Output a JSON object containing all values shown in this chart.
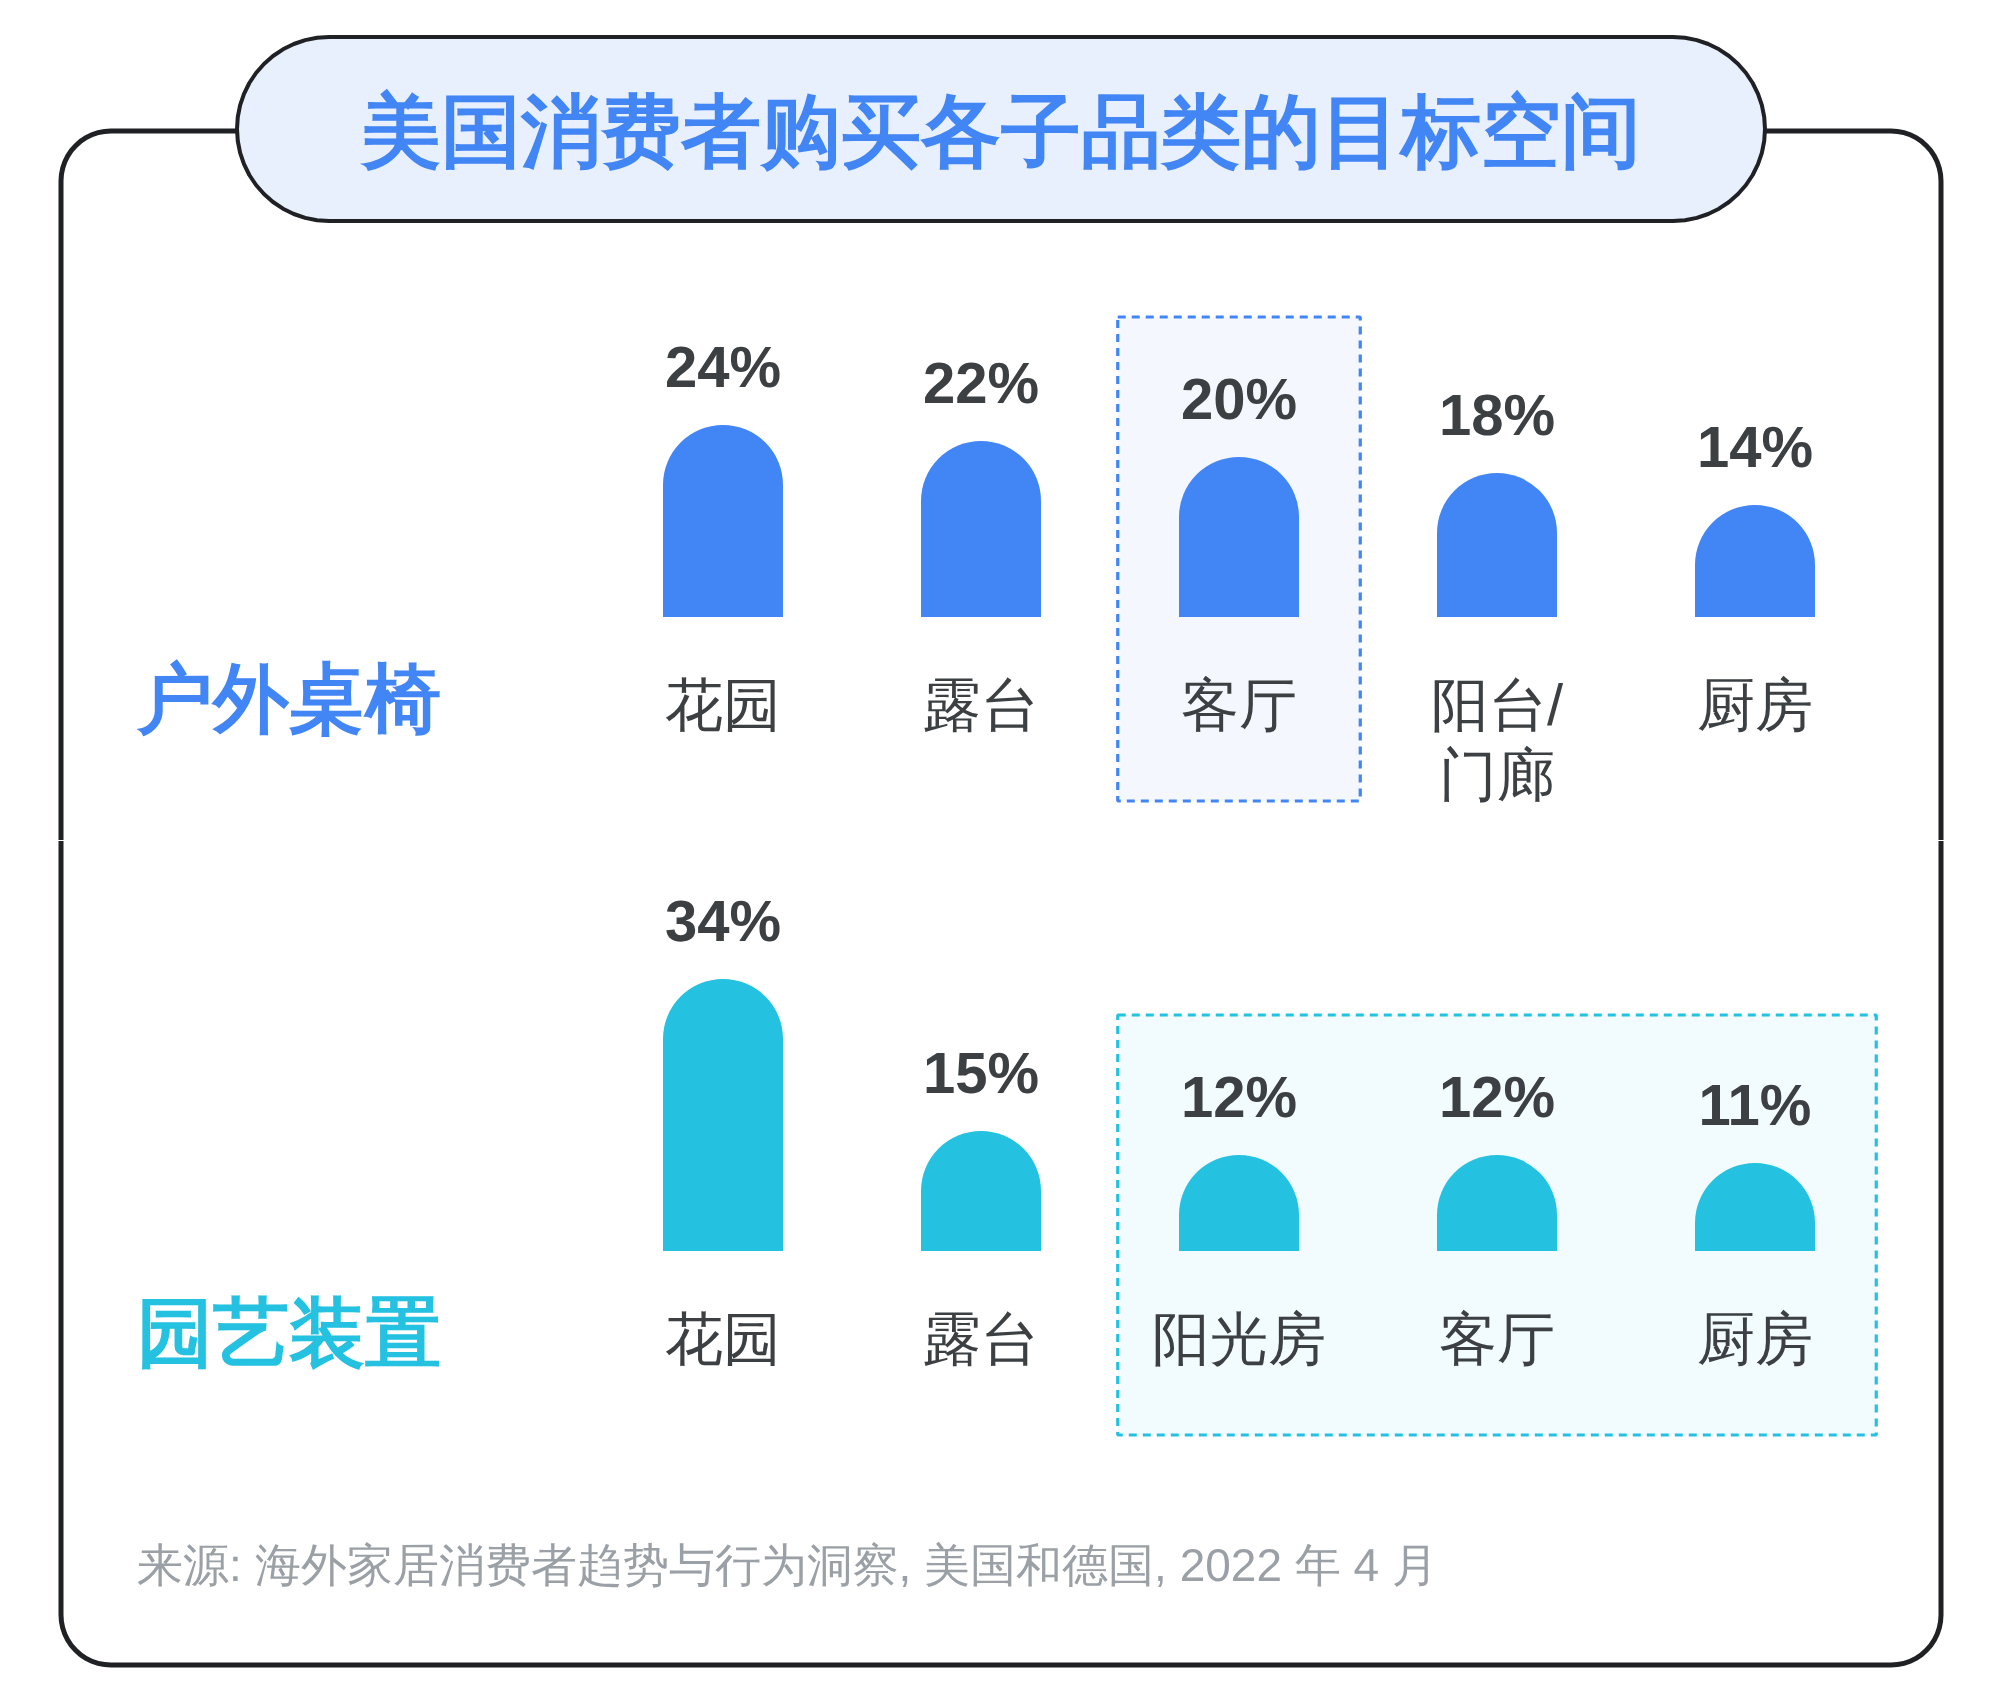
{
  "chart_data": [
    {
      "type": "bar",
      "title": "美国消费者购买各子品类的目标空间",
      "ylabel": "户外桌椅",
      "categories": [
        "花园",
        "露台",
        "客厅",
        "阳台/门廊",
        "厨房"
      ],
      "values": [
        24,
        22,
        20,
        18,
        14
      ],
      "value_labels": [
        "24%",
        "22%",
        "20%",
        "18%",
        "14%"
      ],
      "color": "#4285f4",
      "bands": [
        {
          "axis": "x",
          "from": "客厅",
          "to": "客厅",
          "color": "#4285f4"
        }
      ]
    },
    {
      "type": "bar",
      "ylabel": "园艺装置",
      "categories": [
        "花园",
        "露台",
        "阳光房",
        "客厅",
        "厨房"
      ],
      "values": [
        34,
        15,
        12,
        12,
        11
      ],
      "value_labels": [
        "34%",
        "15%",
        "12%",
        "12%",
        "11%"
      ],
      "color": "#24c1e0",
      "bands": [
        {
          "axis": "x",
          "from": "阳光房",
          "to": "厨房",
          "color": "#24c1e0"
        }
      ],
      "annotations": [
        "来源: 海外家居消费者趋势与行为洞察, 美国和德国, 2022 年 4 月"
      ]
    }
  ]
}
